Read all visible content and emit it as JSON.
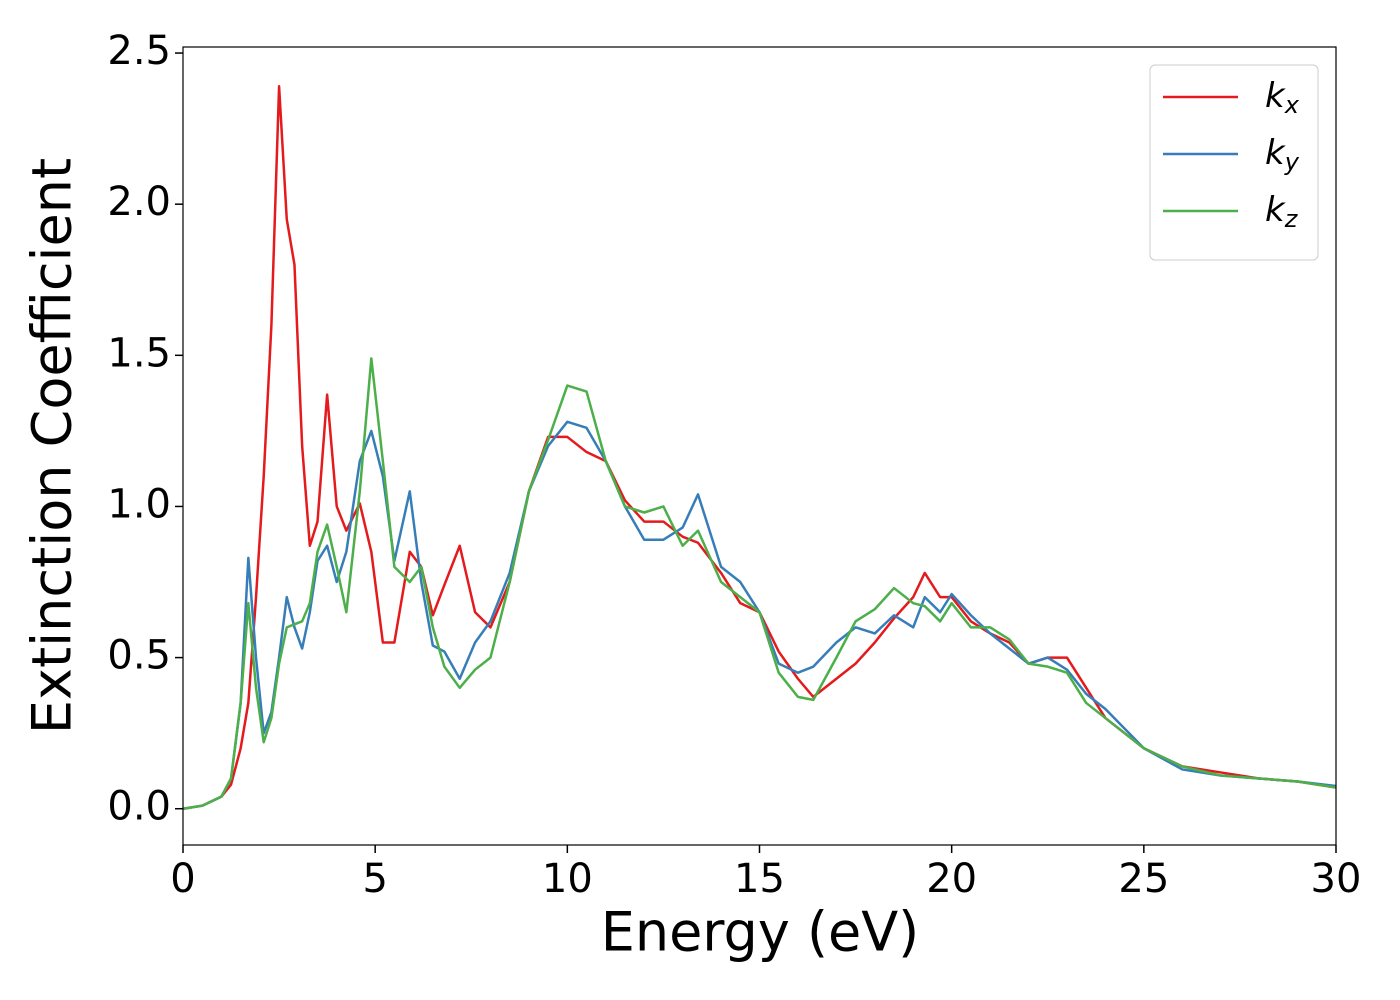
{
  "chart_data": {
    "type": "line",
    "xlabel": "Energy (eV)",
    "ylabel": "Extinction Coefficient",
    "x": [
      0,
      0.5,
      1,
      1.25,
      1.5,
      1.7,
      1.9,
      2.1,
      2.3,
      2.5,
      2.7,
      2.9,
      3.1,
      3.3,
      3.5,
      3.75,
      4,
      4.25,
      4.6,
      4.9,
      5.2,
      5.5,
      5.9,
      6.2,
      6.5,
      6.8,
      7.2,
      7.6,
      8,
      8.5,
      9,
      9.5,
      10,
      10.5,
      11,
      11.5,
      12,
      12.5,
      13,
      13.4,
      14,
      14.5,
      15,
      15.5,
      16,
      16.4,
      17,
      17.5,
      18,
      18.5,
      19,
      19.3,
      19.7,
      20,
      20.5,
      21,
      21.5,
      22,
      22.5,
      23,
      23.5,
      24,
      25,
      26,
      27,
      28,
      29,
      30
    ],
    "series": [
      {
        "name": "kx",
        "color": "#e41a1c",
        "values": [
          0,
          0.01,
          0.04,
          0.08,
          0.2,
          0.35,
          0.7,
          1.1,
          1.6,
          2.39,
          1.95,
          1.8,
          1.2,
          0.87,
          0.95,
          1.37,
          1.0,
          0.92,
          1.01,
          0.85,
          0.55,
          0.55,
          0.85,
          0.8,
          0.64,
          0.74,
          0.87,
          0.65,
          0.6,
          0.75,
          1.05,
          1.23,
          1.23,
          1.18,
          1.15,
          1.02,
          0.95,
          0.95,
          0.9,
          0.88,
          0.78,
          0.68,
          0.65,
          0.52,
          0.43,
          0.37,
          0.43,
          0.48,
          0.55,
          0.63,
          0.7,
          0.78,
          0.7,
          0.7,
          0.62,
          0.58,
          0.55,
          0.48,
          0.5,
          0.5,
          0.4,
          0.3,
          0.2,
          0.14,
          0.12,
          0.1,
          0.09,
          0.07
        ]
      },
      {
        "name": "ky",
        "color": "#377eb8",
        "values": [
          0,
          0.01,
          0.04,
          0.1,
          0.35,
          0.83,
          0.5,
          0.25,
          0.32,
          0.5,
          0.7,
          0.6,
          0.53,
          0.65,
          0.82,
          0.87,
          0.75,
          0.85,
          1.15,
          1.25,
          1.1,
          0.82,
          1.05,
          0.75,
          0.54,
          0.52,
          0.43,
          0.55,
          0.62,
          0.78,
          1.05,
          1.2,
          1.28,
          1.26,
          1.15,
          1.0,
          0.89,
          0.89,
          0.93,
          1.04,
          0.8,
          0.75,
          0.65,
          0.48,
          0.45,
          0.47,
          0.55,
          0.6,
          0.58,
          0.64,
          0.6,
          0.7,
          0.65,
          0.71,
          0.64,
          0.58,
          0.53,
          0.48,
          0.5,
          0.46,
          0.38,
          0.33,
          0.2,
          0.13,
          0.11,
          0.1,
          0.09,
          0.075
        ]
      },
      {
        "name": "kz",
        "color": "#4daf4a",
        "values": [
          0,
          0.01,
          0.04,
          0.1,
          0.35,
          0.68,
          0.4,
          0.22,
          0.3,
          0.48,
          0.6,
          0.61,
          0.62,
          0.68,
          0.85,
          0.94,
          0.8,
          0.65,
          1.05,
          1.49,
          1.15,
          0.8,
          0.75,
          0.8,
          0.6,
          0.47,
          0.4,
          0.46,
          0.5,
          0.75,
          1.05,
          1.22,
          1.4,
          1.38,
          1.15,
          1.0,
          0.98,
          1.0,
          0.87,
          0.92,
          0.75,
          0.7,
          0.65,
          0.45,
          0.37,
          0.36,
          0.5,
          0.62,
          0.66,
          0.73,
          0.68,
          0.67,
          0.62,
          0.68,
          0.6,
          0.6,
          0.56,
          0.48,
          0.47,
          0.45,
          0.35,
          0.3,
          0.2,
          0.14,
          0.11,
          0.1,
          0.09,
          0.07
        ]
      }
    ],
    "xlim": [
      0,
      30
    ],
    "ylim": [
      -0.12,
      2.52
    ],
    "xticks": [
      0,
      5,
      10,
      15,
      20,
      25,
      30
    ],
    "yticks": [
      {
        "value": 0,
        "label": "0.0"
      },
      {
        "value": 0.5,
        "label": "0.5"
      },
      {
        "value": 1,
        "label": "1.0"
      },
      {
        "value": 1.5,
        "label": "1.5"
      },
      {
        "value": 2,
        "label": "2.0"
      },
      {
        "value": 2.5,
        "label": "2.5"
      }
    ],
    "grid": false,
    "legend": "upper right"
  }
}
